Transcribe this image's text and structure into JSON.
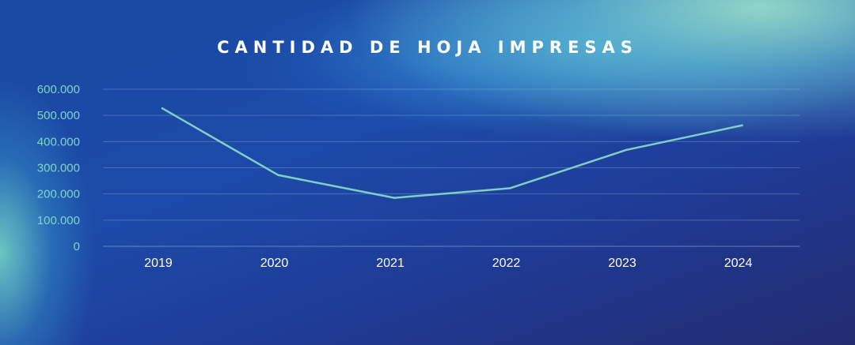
{
  "chart_data": {
    "type": "line",
    "title": "CANTIDAD DE HOJA IMPRESAS",
    "xlabel": "",
    "ylabel": "",
    "categories": [
      "2019",
      "2020",
      "2021",
      "2022",
      "2023",
      "2024"
    ],
    "values": [
      527000,
      272000,
      185000,
      222000,
      368000,
      462000
    ],
    "y_ticks": [
      "600.000",
      "500.000",
      "400.000",
      "300.000",
      "200.000",
      "100.000",
      "0"
    ],
    "ylim": [
      0,
      600000
    ],
    "grid": true,
    "line_color": "#7fcfc6"
  }
}
